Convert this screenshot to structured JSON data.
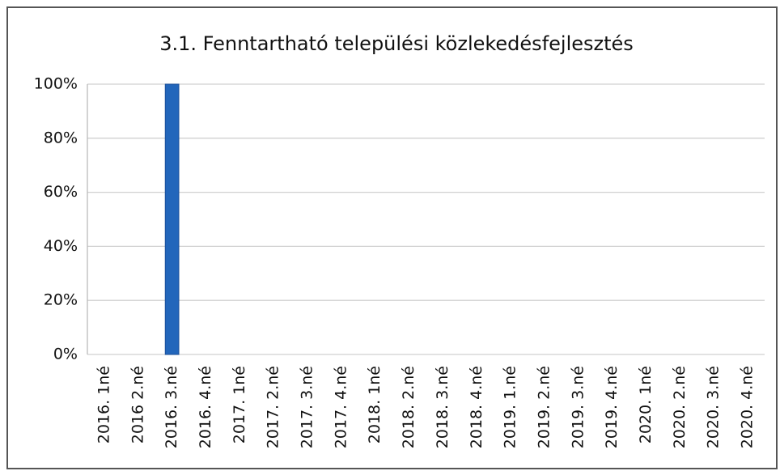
{
  "chart_data": {
    "type": "bar",
    "title": "3.1. Fenntartható települési közlekedésfejlesztés",
    "categories": [
      "2016. 1né",
      "2016 2.né",
      "2016. 3.né",
      "2016. 4.né",
      "2017. 1né",
      "2017. 2.né",
      "2017. 3.né",
      "2017. 4.né",
      "2018. 1né",
      "2018. 2.né",
      "2018. 3.né",
      "2018. 4.né",
      "2019. 1.né",
      "2019. 2.né",
      "2019. 3.né",
      "2019. 4.né",
      "2020. 1né",
      "2020. 2.né",
      "2020. 3.né",
      "2020. 4.né"
    ],
    "values": [
      0,
      0,
      100,
      0,
      0,
      0,
      0,
      0,
      0,
      0,
      0,
      0,
      0,
      0,
      0,
      0,
      0,
      0,
      0,
      0
    ],
    "color": "#2266bb",
    "ylim": [
      0,
      100
    ],
    "yticks": [
      {
        "value": 0,
        "label": "0%"
      },
      {
        "value": 20,
        "label": "20%"
      },
      {
        "value": 40,
        "label": "40%"
      },
      {
        "value": 60,
        "label": "60%"
      },
      {
        "value": 80,
        "label": "80%"
      },
      {
        "value": 100,
        "label": "100%"
      }
    ],
    "grid": true
  }
}
